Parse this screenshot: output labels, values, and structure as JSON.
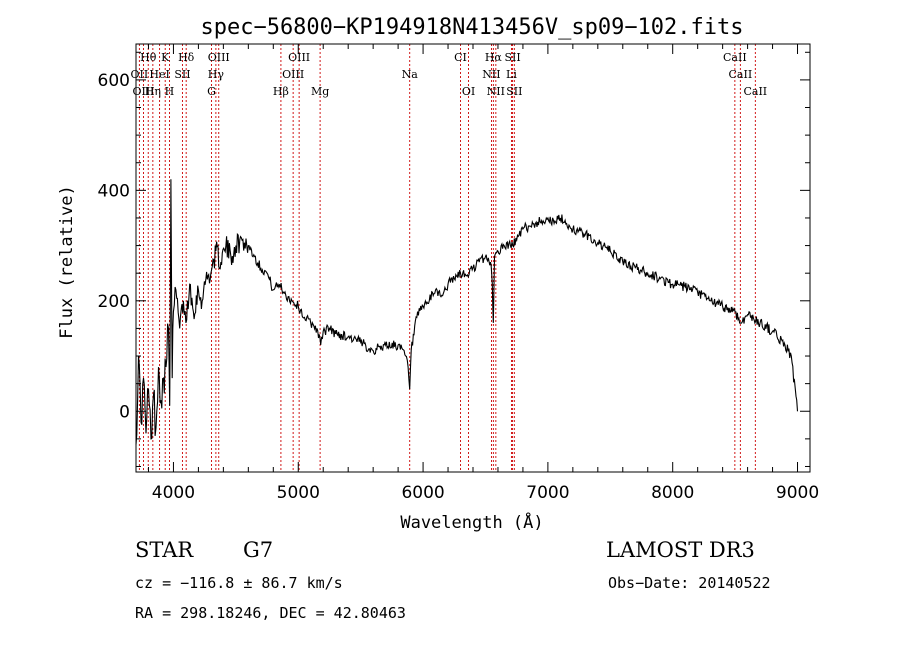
{
  "chart_data": {
    "type": "line",
    "title": "spec−56800−KP194918N413456V_sp09−102.fits",
    "xlabel": "Wavelength (Å)",
    "ylabel": "Flux (relative)",
    "xlim": [
      3700,
      9100
    ],
    "ylim": [
      -110,
      665
    ],
    "x_ticks": [
      4000,
      5000,
      6000,
      7000,
      8000,
      9000
    ],
    "x_tick_labels": [
      "4000",
      "5000",
      "6000",
      "7000",
      "8000",
      "9000"
    ],
    "y_ticks": [
      0,
      200,
      400,
      600
    ],
    "y_tick_labels": [
      "0",
      "200",
      "400",
      "600"
    ],
    "line_color": "#000000",
    "marker_color": "#cc0000",
    "spectrum": {
      "x": [
        3700,
        3720,
        3740,
        3760,
        3780,
        3800,
        3820,
        3840,
        3860,
        3880,
        3900,
        3920,
        3940,
        3960,
        3970,
        3980,
        3990,
        4000,
        4020,
        4050,
        4080,
        4100,
        4130,
        4160,
        4200,
        4230,
        4260,
        4300,
        4340,
        4380,
        4420,
        4460,
        4500,
        4550,
        4600,
        4650,
        4700,
        4750,
        4800,
        4850,
        4900,
        4950,
        5000,
        5050,
        5100,
        5150,
        5180,
        5200,
        5250,
        5300,
        5400,
        5500,
        5600,
        5700,
        5800,
        5860,
        5880,
        5893,
        5905,
        5950,
        6000,
        6050,
        6100,
        6150,
        6200,
        6250,
        6300,
        6350,
        6400,
        6450,
        6500,
        6540,
        6555,
        6563,
        6572,
        6600,
        6650,
        6700,
        6750,
        6800,
        6850,
        6900,
        6950,
        7000,
        7050,
        7100,
        7150,
        7200,
        7300,
        7400,
        7500,
        7600,
        7700,
        7800,
        7900,
        8000,
        8100,
        8200,
        8300,
        8400,
        8500,
        8542,
        8600,
        8700,
        8800,
        8900,
        8950,
        9000
      ],
      "y": [
        -60,
        100,
        -20,
        60,
        -40,
        40,
        -50,
        30,
        -30,
        80,
        20,
        60,
        80,
        150,
        10,
        420,
        60,
        180,
        220,
        150,
        200,
        160,
        230,
        180,
        220,
        200,
        240,
        250,
        290,
        270,
        300,
        280,
        300,
        310,
        300,
        280,
        260,
        250,
        220,
        230,
        210,
        200,
        190,
        170,
        160,
        150,
        120,
        145,
        150,
        140,
        135,
        125,
        110,
        120,
        120,
        100,
        80,
        40,
        110,
        170,
        190,
        200,
        220,
        210,
        230,
        240,
        250,
        245,
        260,
        270,
        280,
        270,
        230,
        160,
        280,
        290,
        300,
        300,
        310,
        330,
        335,
        340,
        345,
        350,
        340,
        350,
        340,
        330,
        320,
        305,
        290,
        270,
        260,
        250,
        240,
        230,
        225,
        215,
        200,
        190,
        180,
        160,
        175,
        160,
        145,
        120,
        100,
        0
      ]
    },
    "lines": [
      {
        "label": "Hθ",
        "x": 3798,
        "row": 0
      },
      {
        "label": "K",
        "x": 3934,
        "row": 0
      },
      {
        "label": "Hδ",
        "x": 4102,
        "row": 0
      },
      {
        "label": "OIII",
        "x": 4363,
        "row": 0
      },
      {
        "label": "OIII",
        "x": 5007,
        "row": 0
      },
      {
        "label": "CI",
        "x": 6300,
        "row": 0
      },
      {
        "label": "Hα",
        "x": 6563,
        "row": 0
      },
      {
        "label": "SII",
        "x": 6717,
        "row": 0
      },
      {
        "label": "CaII",
        "x": 8498,
        "row": 0
      },
      {
        "label": "OII",
        "x": 3727,
        "row": 1
      },
      {
        "label": "HeI",
        "x": 3889,
        "row": 1
      },
      {
        "label": "SII",
        "x": 4072,
        "row": 1
      },
      {
        "label": "Hγ",
        "x": 4340,
        "row": 1
      },
      {
        "label": "OIII",
        "x": 4959,
        "row": 1
      },
      {
        "label": "Na",
        "x": 5893,
        "row": 1
      },
      {
        "label": "NII",
        "x": 6548,
        "row": 1
      },
      {
        "label": "Li",
        "x": 6708,
        "row": 1
      },
      {
        "label": "CaII",
        "x": 8542,
        "row": 1
      },
      {
        "label": "OIII",
        "x": 3760,
        "row": 2
      },
      {
        "label": "Hη",
        "x": 3835,
        "row": 2
      },
      {
        "label": "H",
        "x": 3968,
        "row": 2
      },
      {
        "label": "G",
        "x": 4305,
        "row": 2
      },
      {
        "label": "Hβ",
        "x": 4861,
        "row": 2
      },
      {
        "label": "Mg",
        "x": 5175,
        "row": 2
      },
      {
        "label": "OI",
        "x": 6364,
        "row": 2
      },
      {
        "label": "NII",
        "x": 6583,
        "row": 2
      },
      {
        "label": "SII",
        "x": 6731,
        "row": 2
      },
      {
        "label": "CaII",
        "x": 8662,
        "row": 2
      }
    ]
  },
  "info": {
    "class": "STAR",
    "subclass": "G7",
    "survey": "LAMOST DR3",
    "cz": "cz = −116.8 ± 86.7 km/s",
    "obs_date": "Obs−Date: 20140522",
    "coords": "RA = 298.18246, DEC =  42.80463"
  }
}
